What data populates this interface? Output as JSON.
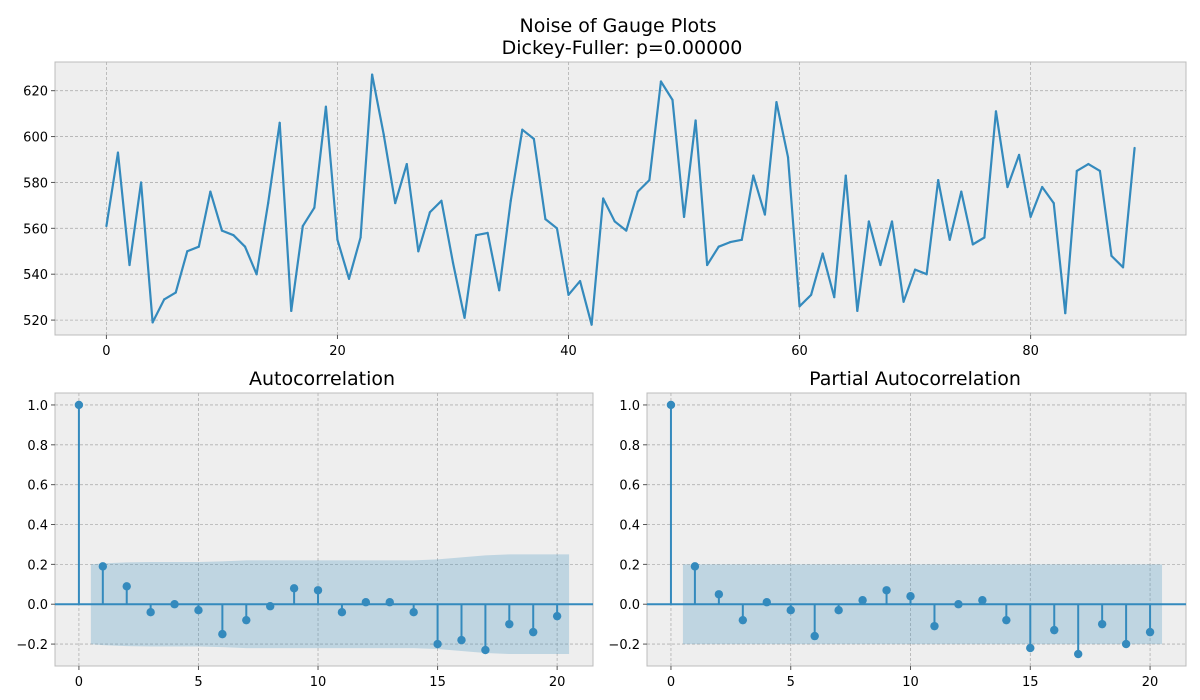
{
  "figure": {
    "title_line1": "Noise of Gauge Plots",
    "title_line2": "Dickey-Fuller: p=0.00000"
  },
  "colors": {
    "line": "#348abd",
    "band": "#bcd3e0",
    "panel": "#eeeeee",
    "grid": "#b0b0b0"
  },
  "chart_data": [
    {
      "type": "line",
      "title": "",
      "x": [
        0,
        1,
        2,
        3,
        4,
        5,
        6,
        7,
        8,
        9,
        10,
        11,
        12,
        13,
        14,
        15,
        16,
        17,
        18,
        19,
        20,
        21,
        22,
        23,
        24,
        25,
        26,
        27,
        28,
        29,
        30,
        31,
        32,
        33,
        34,
        35,
        36,
        37,
        38,
        39,
        40,
        41,
        42,
        43,
        44,
        45,
        46,
        47,
        48,
        49,
        50,
        51,
        52,
        53,
        54,
        55,
        56,
        57,
        58,
        59,
        60,
        61,
        62,
        63,
        64,
        65,
        66,
        67,
        68,
        69,
        70,
        71,
        72,
        73,
        74,
        75,
        76,
        77,
        78,
        79,
        80,
        81,
        82,
        83,
        84,
        85,
        86,
        87,
        88,
        89
      ],
      "values": [
        561,
        593,
        544,
        580,
        519,
        529,
        532,
        550,
        552,
        576,
        559,
        557,
        552,
        540,
        571,
        606,
        524,
        561,
        569,
        613,
        555,
        538,
        556,
        627,
        601,
        571,
        588,
        550,
        567,
        572,
        545,
        521,
        557,
        558,
        533,
        572,
        603,
        599,
        564,
        560,
        531,
        537,
        518,
        573,
        563,
        559,
        576,
        581,
        624,
        616,
        565,
        607,
        544,
        552,
        554,
        555,
        583,
        566,
        615,
        591,
        526,
        531,
        549,
        530,
        583,
        524,
        563,
        544,
        563,
        528,
        542,
        540,
        581,
        555,
        576,
        553,
        556,
        611,
        578,
        592,
        565,
        578,
        571,
        523,
        585,
        588,
        585,
        548,
        543,
        595
      ],
      "xlim": [
        -4.45,
        93.45
      ],
      "ylim": [
        513.5,
        632.5
      ],
      "xticks": [
        "0",
        "20",
        "40",
        "60",
        "80"
      ],
      "yticks": [
        "520",
        "540",
        "560",
        "580",
        "600",
        "620"
      ],
      "grid": true
    },
    {
      "type": "stem",
      "title": "Autocorrelation",
      "x": [
        0,
        1,
        2,
        3,
        4,
        5,
        6,
        7,
        8,
        9,
        10,
        11,
        12,
        13,
        14,
        15,
        16,
        17,
        18,
        19,
        20
      ],
      "values": [
        1.0,
        0.19,
        0.09,
        -0.04,
        0.0,
        -0.03,
        -0.15,
        -0.08,
        -0.01,
        0.08,
        0.07,
        -0.04,
        0.01,
        0.01,
        -0.04,
        -0.2,
        -0.18,
        -0.23,
        -0.1,
        -0.14,
        -0.06
      ],
      "confidence_upper": [
        0.2,
        0.205,
        0.21,
        0.212,
        0.212,
        0.212,
        0.215,
        0.22,
        0.22,
        0.22,
        0.22,
        0.22,
        0.22,
        0.22,
        0.22,
        0.225,
        0.235,
        0.245,
        0.25,
        0.25,
        0.25
      ],
      "confidence_lower": [
        -0.2,
        -0.205,
        -0.21,
        -0.212,
        -0.212,
        -0.212,
        -0.215,
        -0.22,
        -0.22,
        -0.22,
        -0.22,
        -0.22,
        -0.22,
        -0.22,
        -0.22,
        -0.225,
        -0.235,
        -0.245,
        -0.25,
        -0.25,
        -0.25
      ],
      "xlim": [
        -1.0,
        21.5
      ],
      "ylim": [
        -0.31,
        1.06
      ],
      "xticks": [
        "0",
        "5",
        "10",
        "15",
        "20"
      ],
      "yticks": [
        "−0.2",
        "0.0",
        "0.2",
        "0.4",
        "0.6",
        "0.8",
        "1.0"
      ],
      "grid": true
    },
    {
      "type": "stem",
      "title": "Partial Autocorrelation",
      "x": [
        0,
        1,
        2,
        3,
        4,
        5,
        6,
        7,
        8,
        9,
        10,
        11,
        12,
        13,
        14,
        15,
        16,
        17,
        18,
        19,
        20
      ],
      "values": [
        1.0,
        0.19,
        0.05,
        -0.08,
        0.01,
        -0.03,
        -0.16,
        -0.03,
        0.02,
        0.07,
        0.04,
        -0.11,
        -0.0,
        0.02,
        -0.08,
        -0.22,
        -0.13,
        -0.25,
        -0.1,
        -0.2,
        -0.14
      ],
      "confidence_upper": [
        0.2,
        0.2,
        0.2,
        0.2,
        0.2,
        0.2,
        0.2,
        0.2,
        0.2,
        0.2,
        0.2,
        0.2,
        0.2,
        0.2,
        0.2,
        0.2,
        0.2,
        0.2,
        0.2,
        0.2,
        0.2
      ],
      "confidence_lower": [
        -0.2,
        -0.2,
        -0.2,
        -0.2,
        -0.2,
        -0.2,
        -0.2,
        -0.2,
        -0.2,
        -0.2,
        -0.2,
        -0.2,
        -0.2,
        -0.2,
        -0.2,
        -0.2,
        -0.2,
        -0.2,
        -0.2,
        -0.2,
        -0.2
      ],
      "xlim": [
        -1.0,
        21.5
      ],
      "ylim": [
        -0.31,
        1.06
      ],
      "xticks": [
        "0",
        "5",
        "10",
        "15",
        "20"
      ],
      "yticks": [
        "−0.2",
        "0.0",
        "0.2",
        "0.4",
        "0.6",
        "0.8",
        "1.0"
      ],
      "grid": true
    }
  ]
}
